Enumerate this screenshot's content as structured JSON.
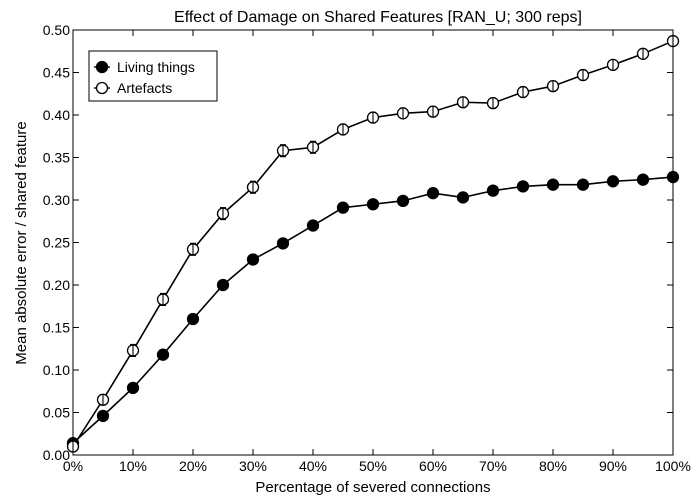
{
  "chart_data": {
    "type": "line",
    "title": "Effect of Damage on Shared Features [RAN_U; 300 reps]",
    "xlabel": "Percentage of severed connections",
    "ylabel": "Mean absolute error / shared feature",
    "x": [
      0,
      5,
      10,
      15,
      20,
      25,
      30,
      35,
      40,
      45,
      50,
      55,
      60,
      65,
      70,
      75,
      80,
      85,
      90,
      95,
      100
    ],
    "x_tick_values": [
      0,
      10,
      20,
      30,
      40,
      50,
      60,
      70,
      80,
      90,
      100
    ],
    "x_tick_labels": [
      "0%",
      "10%",
      "20%",
      "30%",
      "40%",
      "50%",
      "60%",
      "70%",
      "80%",
      "90%",
      "100%"
    ],
    "y_tick_values": [
      0,
      0.05,
      0.1,
      0.15,
      0.2,
      0.25,
      0.3,
      0.35,
      0.4,
      0.45,
      0.5
    ],
    "y_tick_labels": [
      "0.00",
      "0.05",
      "0.10",
      "0.15",
      "0.20",
      "0.25",
      "0.30",
      "0.35",
      "0.40",
      "0.45",
      "0.50"
    ],
    "xlim": [
      0,
      100
    ],
    "ylim": [
      0,
      0.5
    ],
    "grid": false,
    "legend_position": "top-left",
    "series": [
      {
        "name": "Living things",
        "marker": "filled-circle",
        "color": "#000000",
        "values": [
          0.014,
          0.046,
          0.079,
          0.118,
          0.16,
          0.2,
          0.23,
          0.249,
          0.27,
          0.291,
          0.295,
          0.299,
          0.308,
          0.303,
          0.311,
          0.316,
          0.318,
          0.318,
          0.322,
          0.324,
          0.327
        ],
        "errors": [
          0.004,
          0.004,
          0.004,
          0.005,
          0.005,
          0.005,
          0.005,
          0.005,
          0.004,
          0.004,
          0.004,
          0.004,
          0.004,
          0.004,
          0.004,
          0.004,
          0.004,
          0.004,
          0.004,
          0.004,
          0.004
        ]
      },
      {
        "name": "Artefacts",
        "marker": "open-circle",
        "color": "#000000",
        "values": [
          0.01,
          0.065,
          0.123,
          0.183,
          0.242,
          0.284,
          0.315,
          0.358,
          0.362,
          0.383,
          0.397,
          0.402,
          0.404,
          0.415,
          0.414,
          0.427,
          0.434,
          0.447,
          0.459,
          0.472,
          0.487
        ],
        "errors": [
          0.005,
          0.006,
          0.007,
          0.007,
          0.007,
          0.007,
          0.007,
          0.007,
          0.007,
          0.006,
          0.006,
          0.006,
          0.006,
          0.006,
          0.006,
          0.006,
          0.006,
          0.006,
          0.005,
          0.005,
          0.005
        ]
      }
    ]
  }
}
